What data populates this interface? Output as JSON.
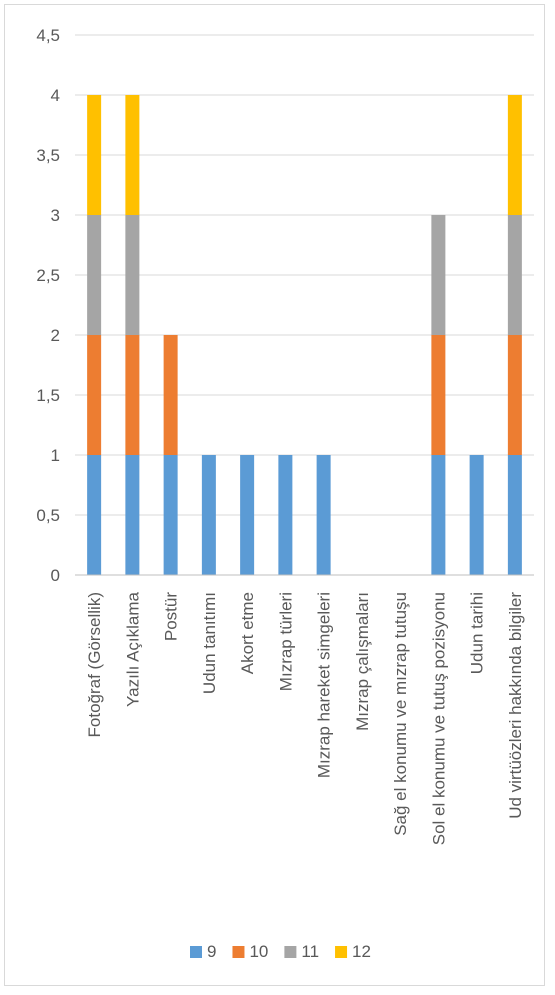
{
  "chart_data": {
    "type": "bar",
    "stacked": true,
    "title": "",
    "xlabel": "",
    "ylabel": "",
    "ylim": [
      0,
      4.5
    ],
    "y_ticks": [
      "0",
      "0,5",
      "1",
      "1,5",
      "2",
      "2,5",
      "3",
      "3,5",
      "4",
      "4,5"
    ],
    "grid": true,
    "legend_position": "bottom",
    "categories": [
      "Fotoğraf (Görsellik)",
      "Yazılı Açıklama",
      "Postür",
      "Udun tanıtımı",
      "Akort etme",
      "Mızrap türleri",
      "Mızrap hareket simgeleri",
      "Mızrap çalışmaları",
      "Sağ el konumu ve mızrap tutuşu",
      "Sol el konumu ve tutuş pozisyonu",
      "Udun tarihi",
      "Ud virtüözleri hakkında bilgiler"
    ],
    "series": [
      {
        "name": "9",
        "color": "#5b9bd5",
        "values": [
          1,
          1,
          1,
          1,
          1,
          1,
          1,
          0,
          0,
          1,
          1,
          1
        ]
      },
      {
        "name": "10",
        "color": "#ed7d31",
        "values": [
          1,
          1,
          1,
          0,
          0,
          0,
          0,
          0,
          0,
          1,
          0,
          1
        ]
      },
      {
        "name": "11",
        "color": "#a5a5a5",
        "values": [
          1,
          1,
          0,
          0,
          0,
          0,
          0,
          0,
          0,
          1,
          0,
          1
        ]
      },
      {
        "name": "12",
        "color": "#ffc000",
        "values": [
          1,
          1,
          0,
          0,
          0,
          0,
          0,
          0,
          0,
          0,
          0,
          1
        ]
      }
    ]
  }
}
